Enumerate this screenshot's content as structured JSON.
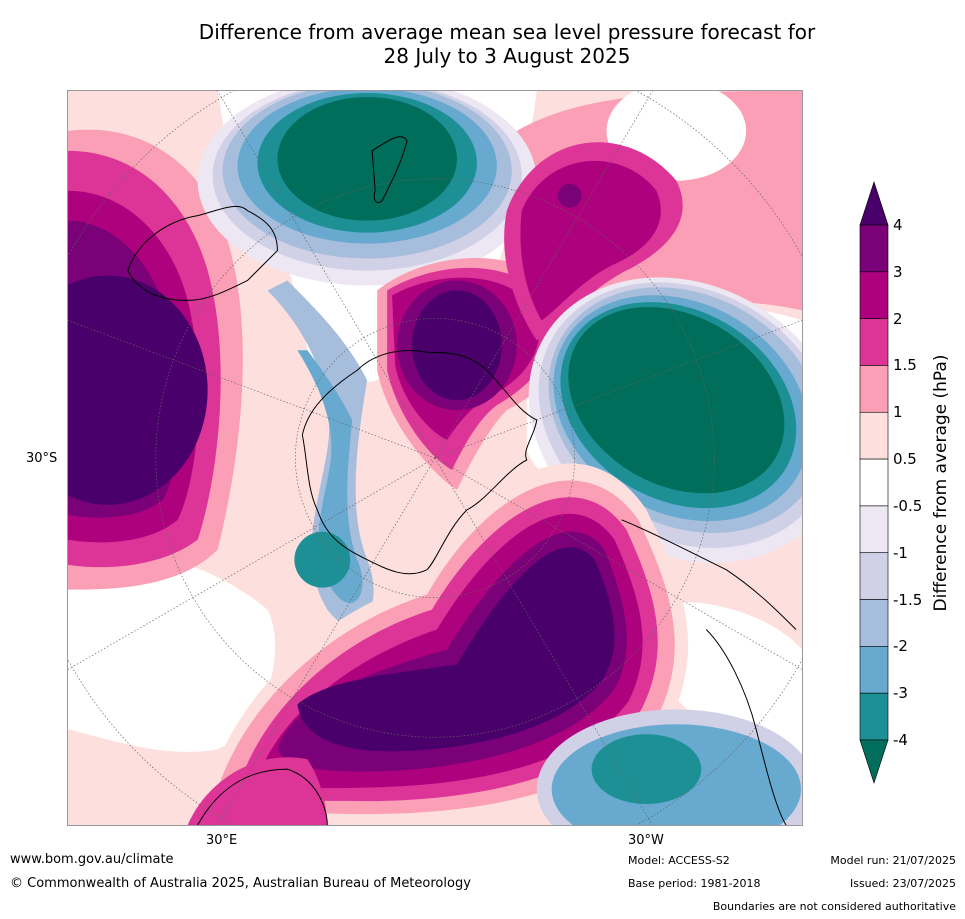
{
  "title_line1": "Difference from average mean sea level pressure forecast for",
  "title_line2": "28 July to 3 August 2025",
  "map": {
    "lat_label": "30°S",
    "lon_labels": [
      "30°E",
      "30°W"
    ],
    "colors": {
      "neg4": "#006e5a",
      "neg3": "#1d9096",
      "neg2": "#67a9cf",
      "neg15": "#a6bddb",
      "neg1": "#d0d1e6",
      "neg05": "#ece7f2",
      "zero": "#ffffff",
      "pos05": "#fde0dd",
      "pos1": "#fa9fb5",
      "pos15": "#dd3497",
      "pos2": "#ae017e",
      "pos3": "#7a0177",
      "pos4": "#49006a"
    }
  },
  "colorbar": {
    "title": "Difference from average (hPa)",
    "ticks": [
      "4",
      "3",
      "2",
      "1.5",
      "1",
      "0.5",
      "-0.5",
      "-1",
      "-1.5",
      "-2",
      "-3",
      "-4"
    ],
    "colors": [
      "#7a0177",
      "#ae017e",
      "#dd3497",
      "#fa9fb5",
      "#fde0dd",
      "#ffffff",
      "#ece7f2",
      "#d0d1e6",
      "#a6bddb",
      "#67a9cf",
      "#1d9096"
    ],
    "top_color": "#49006a",
    "bottom_color": "#006e5a"
  },
  "footer": {
    "website": "www.bom.gov.au/climate",
    "copyright": "© Commonwealth of Australia 2025, Australian Bureau of Meteorology",
    "model": "Model: ACCESS-S2",
    "base_period": "Base period: 1981-2018",
    "model_run": "Model run: 21/07/2025",
    "issued": "Issued: 23/07/2025",
    "disclaimer": "Boundaries are not considered authoritative"
  }
}
